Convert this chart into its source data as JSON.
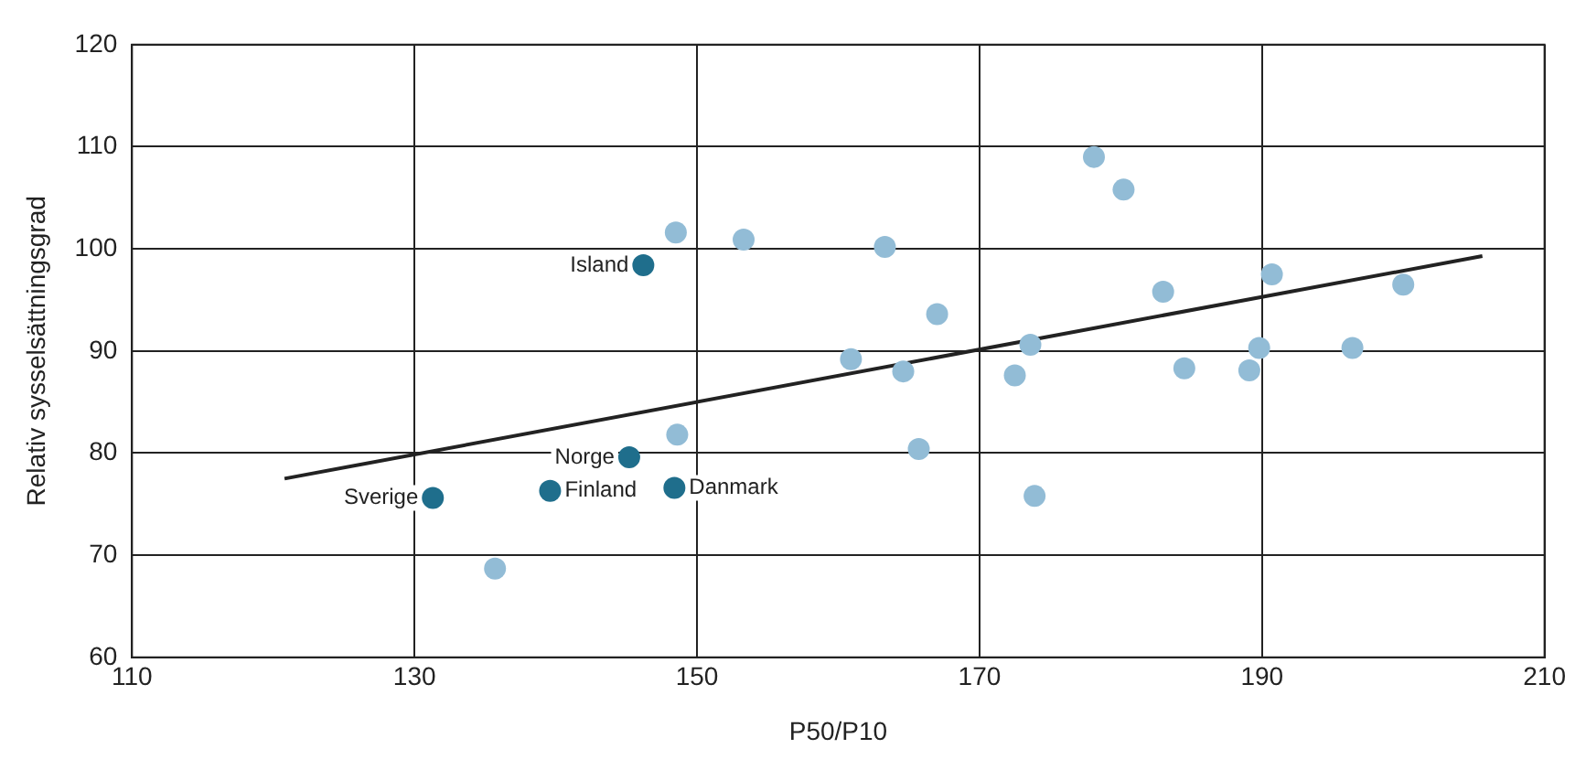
{
  "chart_data": {
    "type": "scatter",
    "xlabel": "P50/P10",
    "ylabel": "Relativ sysselsättningsgrad",
    "xlim": [
      110,
      210
    ],
    "xticks": [
      110,
      130,
      150,
      170,
      190,
      210
    ],
    "ylim": [
      60,
      120
    ],
    "yticks": [
      60,
      70,
      80,
      90,
      100,
      110,
      120
    ],
    "grid": true,
    "legend": false,
    "marker": "circle",
    "series": [
      {
        "color": "#92bcd6",
        "x": [
          148.5,
          153.3,
          163.3,
          178.1,
          180.2,
          167.0,
          160.9,
          164.6,
          173.6,
          172.5,
          183.0,
          190.7,
          200.0,
          189.8,
          196.4,
          184.5,
          189.1,
          148.6,
          165.7,
          173.9,
          135.7
        ],
        "values": [
          101.6,
          100.9,
          100.2,
          109.0,
          105.8,
          93.6,
          89.2,
          88.0,
          90.6,
          87.6,
          95.8,
          97.5,
          96.5,
          90.3,
          90.3,
          88.3,
          88.1,
          81.8,
          80.4,
          75.8,
          68.7
        ]
      },
      {
        "color": "#1f6e8c",
        "x": [
          146.2,
          145.2,
          139.6,
          148.4,
          131.3
        ],
        "values": [
          98.4,
          79.6,
          76.3,
          76.6,
          75.6
        ]
      },
      {
        "type": "line",
        "color": "#222222",
        "marker": "none",
        "x": [
          120.8,
          205.6
        ],
        "values": [
          77.5,
          99.3
        ]
      }
    ],
    "annotations": [
      {
        "text": "Island",
        "x": 146.2,
        "y": 98.4
      },
      {
        "text": "Norge",
        "x": 145.2,
        "y": 79.6
      },
      {
        "text": "Finland",
        "x": 139.6,
        "y": 76.3
      },
      {
        "text": "Danmark",
        "x": 148.4,
        "y": 76.6
      },
      {
        "text": "Sverige",
        "x": 131.3,
        "y": 75.6
      }
    ]
  }
}
